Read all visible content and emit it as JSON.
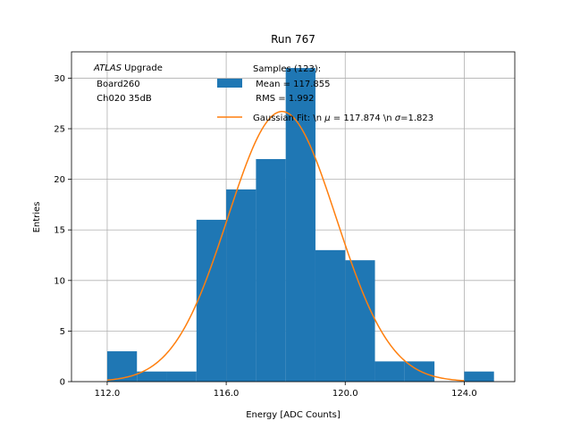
{
  "chart_data": {
    "type": "bar",
    "title": "Run 767",
    "xlabel": "Energy [ADC Counts]",
    "ylabel": "Entries",
    "xlim": [
      110.8,
      125.7
    ],
    "ylim": [
      0,
      32.6
    ],
    "x_ticks": [
      112,
      116,
      120,
      124
    ],
    "x_tick_labels": [
      "112.0",
      "116.0",
      "120.0",
      "124.0"
    ],
    "y_ticks": [
      0,
      5,
      10,
      15,
      20,
      25,
      30
    ],
    "y_tick_labels": [
      "0",
      "5",
      "10",
      "15",
      "20",
      "25",
      "30"
    ],
    "grid": true,
    "bar_color": "#1f77b4",
    "fit_color": "#ff7f0e",
    "histogram": {
      "bin_edges": [
        112,
        113,
        114,
        115,
        116,
        117,
        118,
        119,
        120,
        121,
        122,
        123,
        124,
        125
      ],
      "counts": [
        3,
        1,
        1,
        16,
        19,
        22,
        31,
        13,
        12,
        2,
        2,
        0,
        1
      ]
    },
    "fit": {
      "type": "gaussian",
      "mu": 117.874,
      "sigma": 1.823,
      "amplitude": 26.7,
      "x_range": [
        112,
        124
      ]
    },
    "annotation": {
      "line1_italic": "ATLAS",
      "line1_rest": " Upgrade",
      "line2": " Board260",
      "line3": " Ch020 35dB"
    },
    "legend": {
      "placement": "top-right",
      "samples_line1": "Samples (123):",
      "samples_line2": " Mean = 117.855",
      "samples_line3": " RMS = 1.992",
      "fit_prefix": "Gaussian Fit: \\n ",
      "fit_mu_symbol": "μ",
      "fit_mu_value": " = 117.874 \\n ",
      "fit_sigma_symbol": "σ",
      "fit_sigma_value": "=1.823"
    }
  }
}
